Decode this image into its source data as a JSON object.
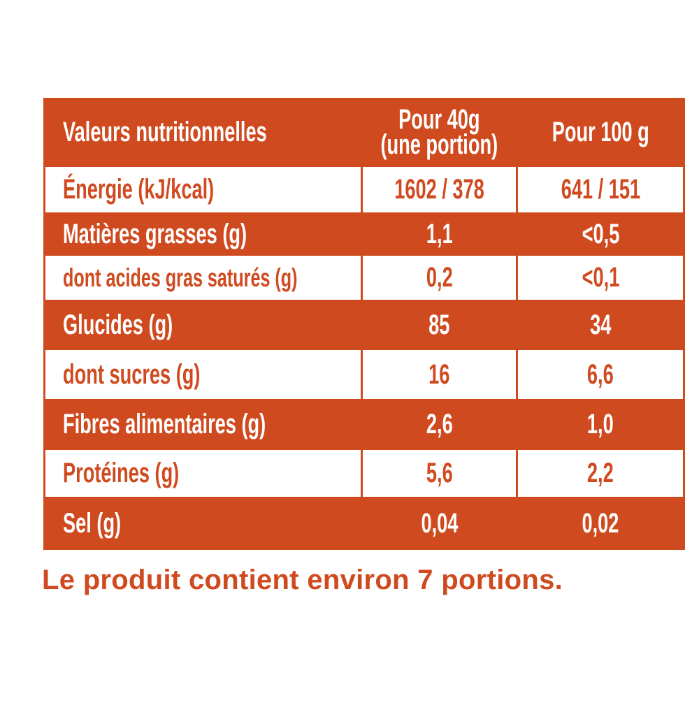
{
  "header": {
    "label": "Valeurs nutritionnelles",
    "col1_line1": "Pour 40g",
    "col1_line2": "(une portion)",
    "col2": "Pour 100 g"
  },
  "rows": [
    {
      "label": "Énergie (kJ/kcal)",
      "per_portion": "1602 / 378",
      "per_100g": "641 / 151"
    },
    {
      "label": "Matières grasses (g)",
      "per_portion": "1,1",
      "per_100g": "<0,5"
    },
    {
      "label": "dont acides gras saturés (g)",
      "per_portion": "0,2",
      "per_100g": "<0,1"
    },
    {
      "label": "Glucides (g)",
      "per_portion": "85",
      "per_100g": "34"
    },
    {
      "label": "dont sucres (g)",
      "per_portion": "16",
      "per_100g": "6,6"
    },
    {
      "label": "Fibres alimentaires (g)",
      "per_portion": "2,6",
      "per_100g": "1,0"
    },
    {
      "label": "Protéines (g)",
      "per_portion": "5,6",
      "per_100g": "2,2"
    },
    {
      "label": "Sel (g)",
      "per_portion": "0,04",
      "per_100g": "0,02"
    }
  ],
  "note": "Le produit contient environ 7 portions.",
  "colors": {
    "accent": "#D04A1F"
  }
}
